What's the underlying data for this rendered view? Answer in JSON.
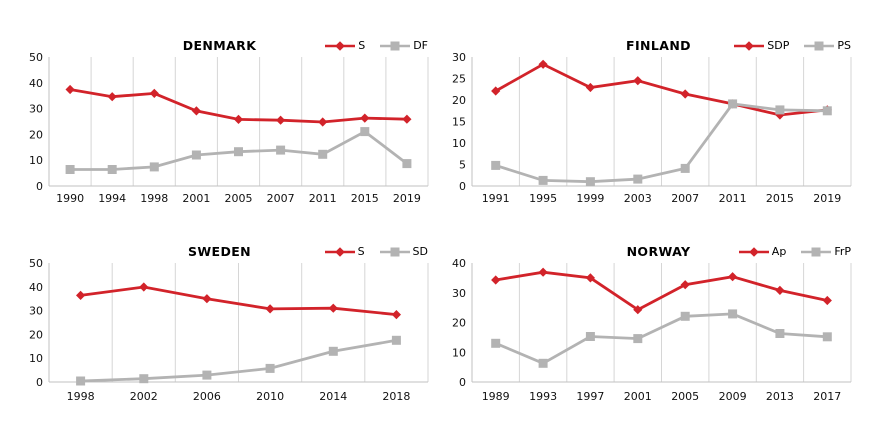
{
  "style": {
    "accent_red": "#d2232a",
    "series_gray": "#b3b3b3",
    "gridline_color": "#d6d6d6",
    "axis_color": "#c2c2c2",
    "text_color": "#111111",
    "background": "#ffffff"
  },
  "chart_data": [
    {
      "type": "line",
      "title": "DENMARK",
      "categories": [
        "1990",
        "1994",
        "1998",
        "2001",
        "2005",
        "2007",
        "2011",
        "2015",
        "2019"
      ],
      "series": [
        {
          "name": "S",
          "color": "#d2232a",
          "marker": "diamond",
          "values": [
            37.4,
            34.6,
            35.9,
            29.1,
            25.8,
            25.5,
            24.8,
            26.3,
            25.9
          ]
        },
        {
          "name": "DF",
          "color": "#b3b3b3",
          "marker": "square",
          "values": [
            6.4,
            6.4,
            7.4,
            12.0,
            13.3,
            13.9,
            12.3,
            21.1,
            8.7
          ]
        }
      ],
      "ylim": [
        0,
        50
      ],
      "ytick_step": 10,
      "grid": "vertical-only",
      "legend_position": "top-right"
    },
    {
      "type": "line",
      "title": "FINLAND",
      "categories": [
        "1991",
        "1995",
        "1999",
        "2003",
        "2007",
        "2011",
        "2015",
        "2019"
      ],
      "series": [
        {
          "name": "SDP",
          "color": "#d2232a",
          "marker": "diamond",
          "values": [
            22.1,
            28.3,
            22.9,
            24.5,
            21.4,
            19.1,
            16.5,
            17.7
          ]
        },
        {
          "name": "PS",
          "color": "#b3b3b3",
          "marker": "square",
          "values": [
            4.8,
            1.3,
            1.0,
            1.6,
            4.1,
            19.1,
            17.7,
            17.5
          ]
        }
      ],
      "ylim": [
        0,
        30
      ],
      "ytick_step": 5,
      "grid": "vertical-only",
      "legend_position": "top-right"
    },
    {
      "type": "line",
      "title": "SWEDEN",
      "categories": [
        "1998",
        "2002",
        "2006",
        "2010",
        "2014",
        "2018"
      ],
      "series": [
        {
          "name": "S",
          "color": "#d2232a",
          "marker": "diamond",
          "values": [
            36.4,
            39.9,
            35.0,
            30.7,
            31.0,
            28.3
          ]
        },
        {
          "name": "SD",
          "color": "#b3b3b3",
          "marker": "square",
          "values": [
            0.4,
            1.4,
            2.9,
            5.7,
            12.9,
            17.5
          ]
        }
      ],
      "ylim": [
        0,
        50
      ],
      "ytick_step": 10,
      "grid": "vertical-only",
      "legend_position": "top-right"
    },
    {
      "type": "line",
      "title": "NORWAY",
      "categories": [
        "1989",
        "1993",
        "1997",
        "2001",
        "2005",
        "2009",
        "2013",
        "2017"
      ],
      "series": [
        {
          "name": "Ap",
          "color": "#d2232a",
          "marker": "diamond",
          "values": [
            34.3,
            36.9,
            35.0,
            24.3,
            32.7,
            35.4,
            30.8,
            27.4
          ]
        },
        {
          "name": "FrP",
          "color": "#b3b3b3",
          "marker": "square",
          "values": [
            13.0,
            6.3,
            15.3,
            14.6,
            22.1,
            22.9,
            16.3,
            15.2
          ]
        }
      ],
      "ylim": [
        0,
        40
      ],
      "ytick_step": 10,
      "grid": "vertical-only",
      "legend_position": "top-right"
    }
  ]
}
